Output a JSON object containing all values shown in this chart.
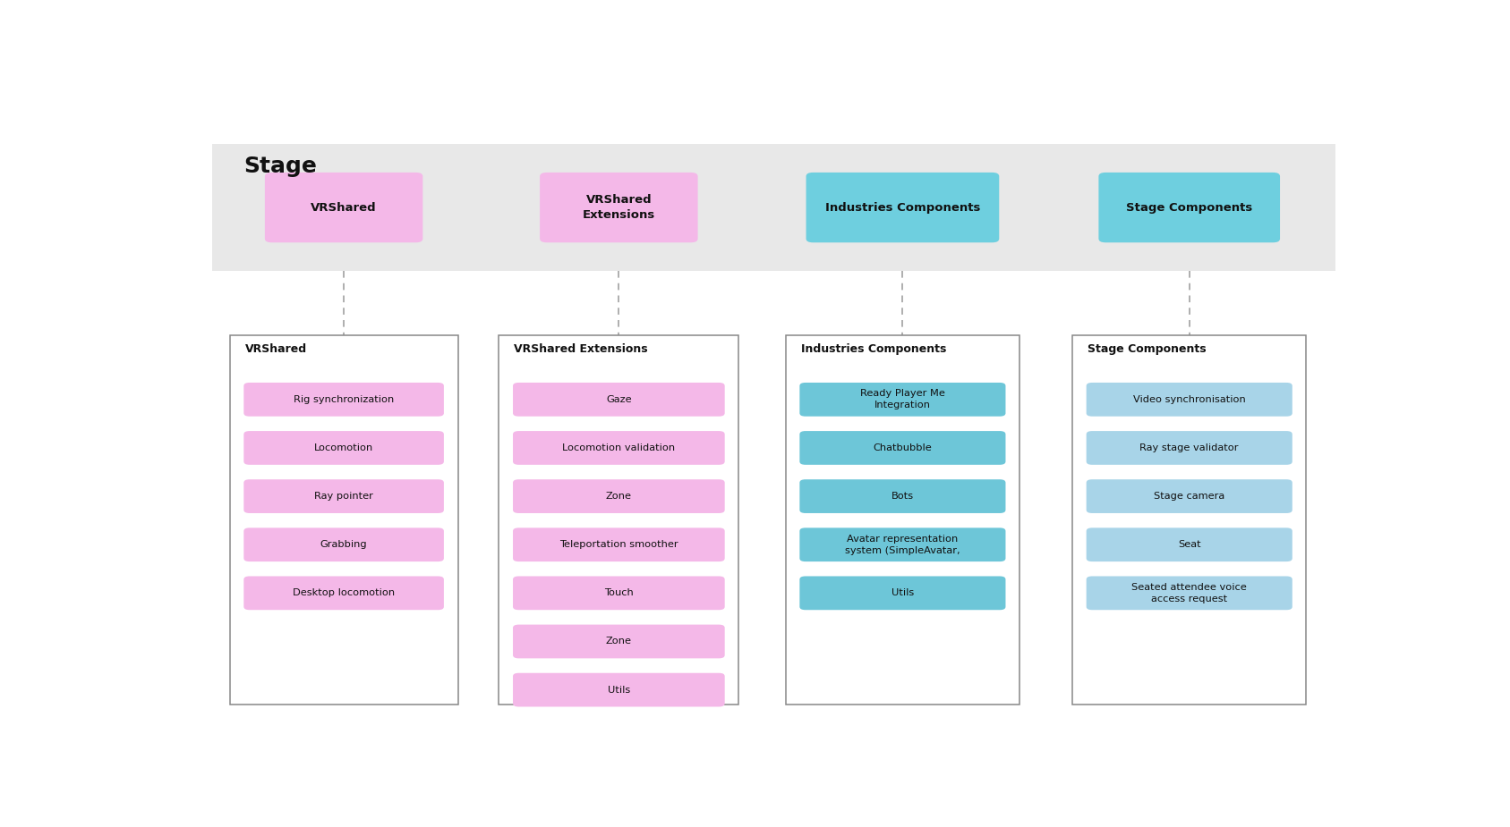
{
  "title": "Stage",
  "title_fontsize": 18,
  "title_fontweight": "bold",
  "banner_color": "#e8e8e8",
  "fig_bg": "#ffffff",
  "top_btn_pink": "#f4b8e8",
  "top_btn_cyan": "#6ecfdf",
  "item_pink": "#f4b8e8",
  "item_cyan_industries": "#6dc6d8",
  "item_cyan_stage": "#a8d4e8",
  "columns": [
    {
      "id": "vrshared",
      "top_label": "VRShared",
      "top_multiline": false,
      "top_type": "pink",
      "label": "VRShared",
      "items": [
        "Rig synchronization",
        "Locomotion",
        "Ray pointer",
        "Grabbing",
        "Desktop locomotion"
      ],
      "item_type": "pink"
    },
    {
      "id": "vrshared_ext",
      "top_label": "VRShared\nExtensions",
      "top_multiline": true,
      "top_type": "pink",
      "label": "VRShared Extensions",
      "items": [
        "Gaze",
        "Locomotion validation",
        "Zone",
        "Teleportation smoother",
        "Touch",
        "Zone",
        "Utils"
      ],
      "item_type": "pink"
    },
    {
      "id": "industries",
      "top_label": "Industries Components",
      "top_multiline": false,
      "top_type": "cyan",
      "label": "Industries Components",
      "items": [
        "Ready Player Me\nIntegration",
        "Chatbubble",
        "Bots",
        "Avatar representation\nsystem (SimpleAvatar,",
        "Utils"
      ],
      "item_type": "cyan_industries"
    },
    {
      "id": "stage",
      "top_label": "Stage Components",
      "top_multiline": false,
      "top_type": "cyan",
      "label": "Stage Components",
      "items": [
        "Video synchronisation",
        "Ray stage validator",
        "Stage camera",
        "Seat",
        "Seated attendee voice\naccess request"
      ],
      "item_type": "cyan_stage"
    }
  ]
}
